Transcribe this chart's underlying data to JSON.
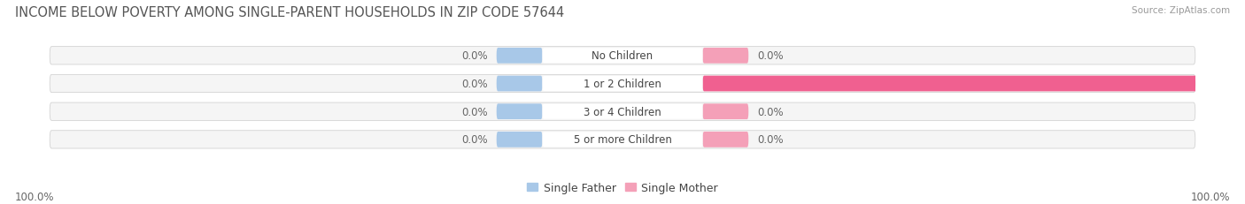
{
  "title": "INCOME BELOW POVERTY AMONG SINGLE-PARENT HOUSEHOLDS IN ZIP CODE 57644",
  "source": "Source: ZipAtlas.com",
  "categories": [
    "No Children",
    "1 or 2 Children",
    "3 or 4 Children",
    "5 or more Children"
  ],
  "single_father_values": [
    0.0,
    0.0,
    0.0,
    0.0
  ],
  "single_mother_values": [
    0.0,
    100.0,
    0.0,
    0.0
  ],
  "father_color": "#a8c8e8",
  "mother_color_light": "#f4a0b8",
  "mother_color_full": "#f06090",
  "bar_bg_color": "#ebebeb",
  "background_color": "#ffffff",
  "row_bg_color": "#f5f5f5",
  "title_fontsize": 10.5,
  "label_fontsize": 8.5,
  "tick_fontsize": 8.5,
  "legend_fontsize": 9,
  "xlim": [
    -100,
    100
  ],
  "axis_label_left": "100.0%",
  "axis_label_right": "100.0%",
  "title_color": "#555555",
  "source_color": "#999999",
  "label_color": "#444444",
  "value_color": "#666666",
  "stub_size": 8.0,
  "full_bar_color": "#f06090"
}
